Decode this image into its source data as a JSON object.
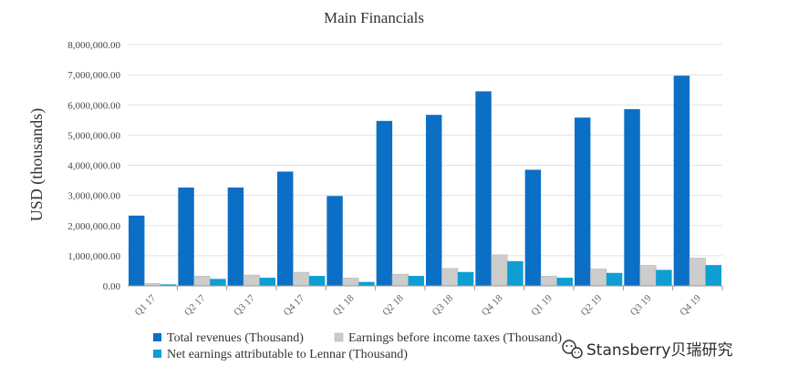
{
  "chart_data": {
    "type": "bar",
    "title": "Main Financials",
    "xlabel": "",
    "ylabel": "USD (thousands)",
    "ylim": [
      0,
      8000000
    ],
    "yticks": [
      0,
      1000000,
      2000000,
      3000000,
      4000000,
      5000000,
      6000000,
      7000000,
      8000000
    ],
    "ytick_labels": [
      "0.00",
      "1,000,000.00",
      "2,000,000.00",
      "3,000,000.00",
      "4,000,000.00",
      "5,000,000.00",
      "6,000,000.00",
      "7,000,000.00",
      "8,000,000.00"
    ],
    "grid": true,
    "legend_position": "bottom",
    "categories": [
      "Q1 17",
      "Q2 17",
      "Q3 17",
      "Q4 17",
      "Q1 18",
      "Q2 18",
      "Q3 18",
      "Q4 18",
      "Q1 19",
      "Q2 19",
      "Q3 19",
      "Q4 19"
    ],
    "series": [
      {
        "name": "Total revenues (Thousand)",
        "color": "#0b6fc6",
        "values": [
          2330000,
          3260000,
          3260000,
          3790000,
          2980000,
          5470000,
          5670000,
          6450000,
          3850000,
          5580000,
          5860000,
          6970000
        ]
      },
      {
        "name": "Earnings before income taxes (Thousand)",
        "color": "#cccccc",
        "values": [
          80000,
          320000,
          360000,
          450000,
          260000,
          390000,
          580000,
          1030000,
          320000,
          560000,
          680000,
          920000
        ]
      },
      {
        "name": "Net earnings attributable to Lennar (Thousand)",
        "color": "#0d9fd3",
        "values": [
          50000,
          230000,
          270000,
          330000,
          130000,
          330000,
          460000,
          820000,
          270000,
          430000,
          530000,
          690000
        ]
      }
    ]
  },
  "watermark": {
    "text": "Stansberry贝瑞研究",
    "icon": "wechat-icon"
  }
}
